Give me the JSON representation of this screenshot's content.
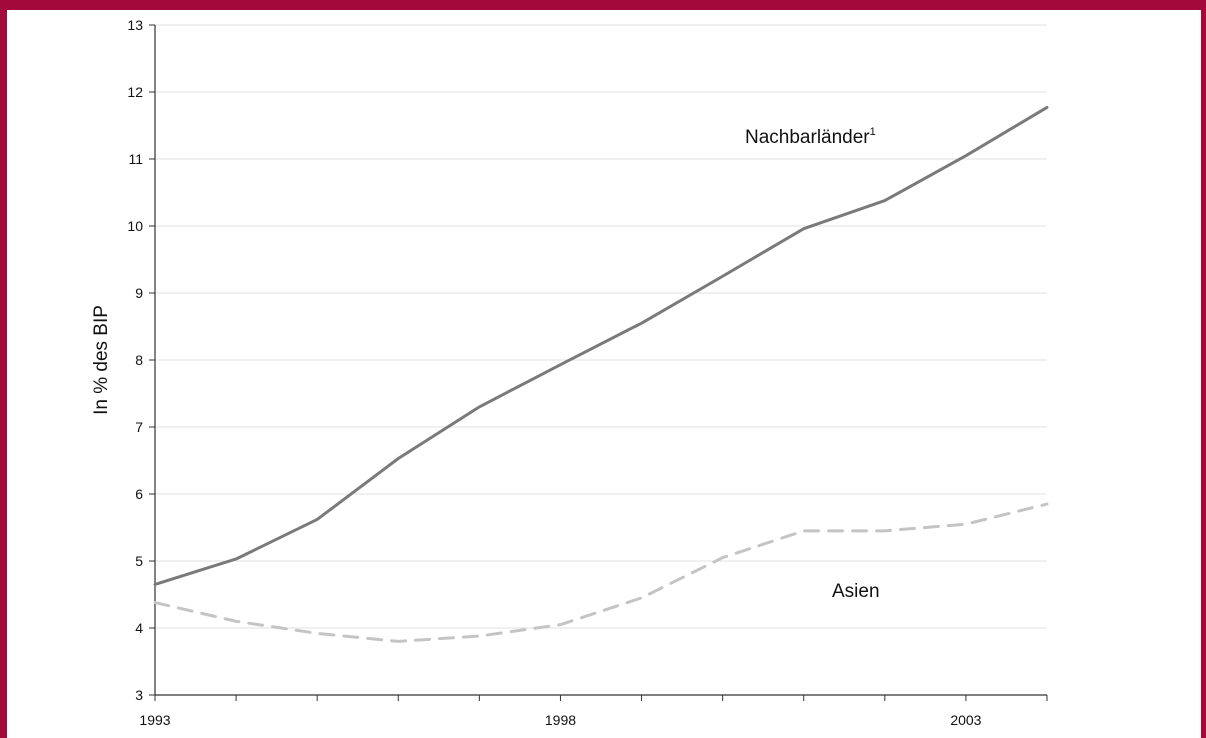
{
  "chart_data": {
    "type": "line",
    "title": "",
    "xlabel": "",
    "ylabel": "In % des BIP",
    "xlim": [
      1993,
      2004
    ],
    "ylim": [
      3,
      13
    ],
    "yticks": [
      3,
      4,
      5,
      6,
      7,
      8,
      9,
      10,
      11,
      12,
      13
    ],
    "xtick_labels": [
      "1993",
      "1998",
      "2003"
    ],
    "xtick_label_values": [
      1993,
      1998,
      2003
    ],
    "grid": true,
    "legend": "none",
    "x": [
      1993,
      1994,
      1995,
      1996,
      1997,
      1998,
      1999,
      2000,
      2001,
      2002,
      2003,
      2004
    ],
    "series": [
      {
        "name": "Nachbarländer",
        "footnote": "1",
        "style": "solid",
        "color": "#7a7a7a",
        "values": [
          4.65,
          5.03,
          5.62,
          6.53,
          7.3,
          7.93,
          8.55,
          9.25,
          9.96,
          10.38,
          11.05,
          11.77
        ]
      },
      {
        "name": "Asien",
        "style": "dashed",
        "color": "#c4c4c4",
        "values": [
          4.38,
          4.1,
          3.92,
          3.8,
          3.88,
          4.05,
          4.45,
          5.05,
          5.45,
          5.45,
          5.55,
          5.85
        ]
      }
    ]
  },
  "colors": {
    "frame": "#a30a3c",
    "grid": "#e2e2e2",
    "axis": "#333333"
  }
}
